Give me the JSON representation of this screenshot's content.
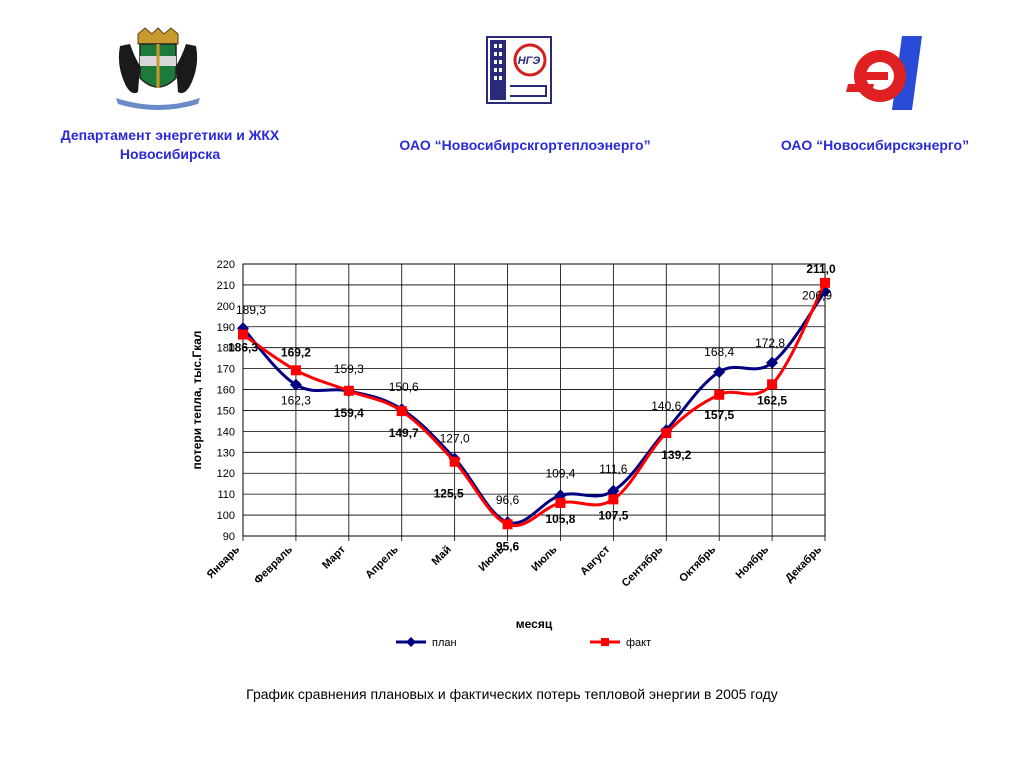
{
  "header": {
    "org_left_line1": "Департамент энергетики и ЖКХ",
    "org_left_line2": "Новосибирска",
    "org_middle": "ОАО “Новосибирскгортеплоэнерго”",
    "org_right": "ОАО “Новосибирскэнерго”",
    "logo_middle_text": "НГЭ"
  },
  "caption": "График сравнения плановых и фактических потерь тепловой энергии в 2005 году",
  "colors": {
    "plan": "#000080",
    "fact": "#ff0000",
    "org_text": "#2a2ad8"
  },
  "chart_data": {
    "type": "line",
    "xlabel": "месяц",
    "ylabel": "потери тепла, тыс.Гкал",
    "ylim": [
      90,
      220
    ],
    "ytick_step": 10,
    "ytick_labels": [
      "90",
      "100",
      "110",
      "120",
      "130",
      "140",
      "150",
      "160",
      "170",
      "180",
      "190",
      "200",
      "210",
      "220"
    ],
    "grid": true,
    "legend": "bottom",
    "categories": [
      "Январь",
      "Февраль",
      "Март",
      "Апрель",
      "Май",
      "Июнь",
      "Июль",
      "Август",
      "Сентябрь",
      "Октябрь",
      "Ноябрь",
      "Декабрь"
    ],
    "series": [
      {
        "name": "план",
        "values": [
          189.3,
          162.3,
          159.3,
          150.6,
          127.0,
          96.6,
          109.4,
          111.6,
          140.6,
          168.4,
          172.8,
          206.9
        ],
        "labels": [
          "189,3",
          "162,3",
          "159,3",
          "150,6",
          "127,0",
          "96,6",
          "109,4",
          "111,6",
          "140,6",
          "168,4",
          "172,8",
          "206,9"
        ]
      },
      {
        "name": "факт",
        "values": [
          186.3,
          169.2,
          159.4,
          149.7,
          125.5,
          95.6,
          105.8,
          107.5,
          139.2,
          157.5,
          162.5,
          211.0
        ],
        "labels": [
          "186,3",
          "169,2",
          "159,4",
          "149,7",
          "125,5",
          "95,6",
          "105,8",
          "107,5",
          "139,2",
          "157,5",
          "162,5",
          "211,0"
        ]
      }
    ]
  }
}
